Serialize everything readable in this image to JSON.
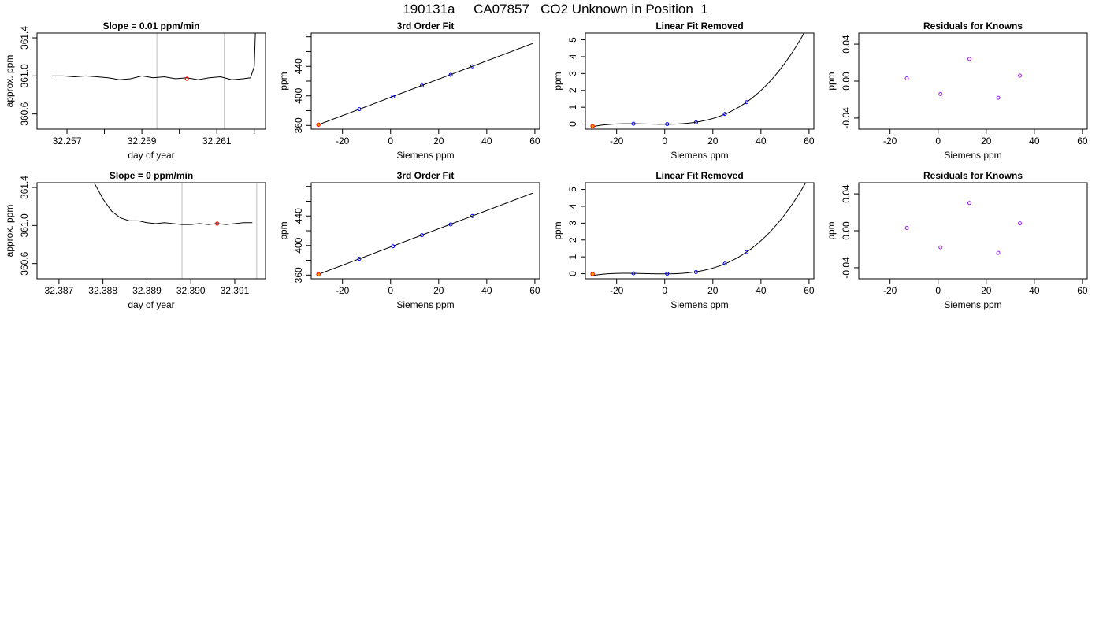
{
  "figure": {
    "title": "190131a     CA07857   CO2 Unknown in Position  1"
  },
  "colors": {
    "line": "#000000",
    "vline": "#bebebe",
    "known_point": "#0000ff",
    "residual_point": "#a020f0",
    "unknown_point": "#ff0000",
    "unknown_fill": "#ffa500"
  },
  "chart_data": [
    {
      "id": "r1-trace",
      "type": "line",
      "title": "Slope =  0.01  ppm/min",
      "xlabel": "day of year",
      "ylabel": "approx. ppm",
      "xlim": [
        32.2562,
        32.2623
      ],
      "ylim": [
        360.44,
        361.45
      ],
      "xticks": [
        32.257,
        32.258,
        32.259,
        32.26,
        32.261,
        32.262
      ],
      "xtick_labels": [
        "32.257",
        "",
        "32.259",
        "",
        "32.261",
        ""
      ],
      "yticks": [
        360.6,
        361.0,
        361.4
      ],
      "ytick_labels": [
        "360.6",
        "361.0",
        "361.4"
      ],
      "vlines": [
        32.2594,
        32.2612
      ],
      "series": [
        {
          "points": [
            [
              32.2566,
              361.0
            ],
            [
              32.2569,
              361.0
            ],
            [
              32.2572,
              360.99
            ],
            [
              32.2575,
              361.0
            ],
            [
              32.2578,
              360.99
            ],
            [
              32.2581,
              360.98
            ],
            [
              32.2584,
              360.96
            ],
            [
              32.2587,
              360.97
            ],
            [
              32.259,
              361.0
            ],
            [
              32.2593,
              360.98
            ],
            [
              32.2596,
              360.99
            ],
            [
              32.2599,
              360.97
            ],
            [
              32.2602,
              360.98
            ],
            [
              32.2605,
              360.96
            ],
            [
              32.2608,
              360.98
            ],
            [
              32.2611,
              360.99
            ],
            [
              32.2614,
              360.96
            ],
            [
              32.2617,
              360.97
            ],
            [
              32.2619,
              360.98
            ],
            [
              32.262,
              361.1
            ],
            [
              32.26203,
              361.45
            ]
          ]
        }
      ],
      "marker": {
        "x": 32.2602,
        "y": 360.97
      }
    },
    {
      "id": "r1-fit",
      "type": "scatter",
      "title": "3rd Order Fit",
      "xlabel": "Siemens ppm",
      "ylabel": "ppm",
      "xlim": [
        -33,
        62
      ],
      "ylim": [
        355,
        485
      ],
      "xticks": [
        -20,
        0,
        20,
        40,
        60
      ],
      "xtick_labels": [
        "-20",
        "0",
        "20",
        "40",
        "60"
      ],
      "yticks": [
        360,
        380,
        400,
        420,
        440,
        460,
        480
      ],
      "ytick_labels": [
        "360",
        "",
        "400",
        "",
        "440",
        "",
        ""
      ],
      "curve": "fit",
      "known_points": [
        [
          -13,
          382.0
        ],
        [
          1,
          399.0
        ],
        [
          13,
          414.0
        ],
        [
          25,
          428.5
        ],
        [
          34,
          440.0
        ]
      ],
      "unknown_point": [
        -30,
        361.0
      ]
    },
    {
      "id": "r1-linear-removed",
      "type": "scatter",
      "title": "Linear Fit Removed",
      "xlabel": "Siemens ppm",
      "ylabel": "ppm",
      "xlim": [
        -33,
        62
      ],
      "ylim": [
        -0.3,
        5.4
      ],
      "xticks": [
        -20,
        0,
        20,
        40,
        60
      ],
      "xtick_labels": [
        "-20",
        "0",
        "20",
        "40",
        "60"
      ],
      "yticks": [
        0,
        1,
        2,
        3,
        4,
        5
      ],
      "ytick_labels": [
        "0",
        "1",
        "2",
        "3",
        "4",
        "5"
      ],
      "curve": "cubic",
      "known_points": [
        [
          -13,
          0.02
        ],
        [
          1,
          0.0
        ],
        [
          13,
          0.1
        ],
        [
          25,
          0.6
        ],
        [
          34,
          1.3
        ]
      ],
      "unknown_point": [
        -30,
        -0.12
      ]
    },
    {
      "id": "r1-residuals",
      "type": "scatter",
      "title": "Residuals for Knowns",
      "xlabel": "Siemens ppm",
      "ylabel": "ppm",
      "xlim": [
        -33,
        62
      ],
      "ylim": [
        -0.052,
        0.052
      ],
      "xticks": [
        -20,
        0,
        20,
        40,
        60
      ],
      "xtick_labels": [
        "-20",
        "0",
        "20",
        "40",
        "60"
      ],
      "yticks": [
        -0.04,
        0.0,
        0.04
      ],
      "ytick_labels": [
        "-0.04",
        "0.00",
        "0.04"
      ],
      "residual_points": [
        [
          -13,
          0.003
        ],
        [
          1,
          -0.014
        ],
        [
          13,
          0.024
        ],
        [
          25,
          -0.018
        ],
        [
          34,
          0.006
        ]
      ]
    },
    {
      "id": "r2-trace",
      "type": "line",
      "title": "Slope =  0  ppm/min",
      "xlabel": "day of year",
      "ylabel": "approx. ppm",
      "xlim": [
        32.3865,
        32.3917
      ],
      "ylim": [
        360.44,
        361.45
      ],
      "xticks": [
        32.387,
        32.388,
        32.389,
        32.39,
        32.391
      ],
      "xtick_labels": [
        "32.387",
        "32.388",
        "32.389",
        "32.390",
        "32.391"
      ],
      "yticks": [
        360.6,
        361.0,
        361.4
      ],
      "ytick_labels": [
        "360.6",
        "361.0",
        "361.4"
      ],
      "vlines": [
        32.3898,
        32.3915
      ],
      "series": [
        {
          "points": [
            [
              32.3878,
              361.45
            ],
            [
              32.388,
              361.28
            ],
            [
              32.3882,
              361.15
            ],
            [
              32.3884,
              361.08
            ],
            [
              32.3886,
              361.05
            ],
            [
              32.3888,
              361.05
            ],
            [
              32.389,
              361.03
            ],
            [
              32.3892,
              361.02
            ],
            [
              32.3894,
              361.03
            ],
            [
              32.3896,
              361.02
            ],
            [
              32.3898,
              361.01
            ],
            [
              32.39,
              361.01
            ],
            [
              32.3902,
              361.02
            ],
            [
              32.3904,
              361.01
            ],
            [
              32.3906,
              361.02
            ],
            [
              32.3908,
              361.01
            ],
            [
              32.391,
              361.02
            ],
            [
              32.3912,
              361.03
            ],
            [
              32.3914,
              361.03
            ]
          ]
        }
      ],
      "marker": {
        "x": 32.3906,
        "y": 361.02
      }
    },
    {
      "id": "r2-fit",
      "type": "scatter",
      "title": "3rd Order Fit",
      "xlabel": "Siemens ppm",
      "ylabel": "ppm",
      "xlim": [
        -33,
        62
      ],
      "ylim": [
        355,
        485
      ],
      "xticks": [
        -20,
        0,
        20,
        40,
        60
      ],
      "xtick_labels": [
        "-20",
        "0",
        "20",
        "40",
        "60"
      ],
      "yticks": [
        360,
        380,
        400,
        420,
        440,
        460,
        480
      ],
      "ytick_labels": [
        "360",
        "",
        "400",
        "",
        "440",
        "",
        ""
      ],
      "curve": "fit",
      "known_points": [
        [
          -13,
          382.0
        ],
        [
          1,
          399.0
        ],
        [
          13,
          414.0
        ],
        [
          25,
          428.5
        ],
        [
          34,
          440.0
        ]
      ],
      "unknown_point": [
        -30,
        361.0
      ]
    },
    {
      "id": "r2-linear-removed",
      "type": "scatter",
      "title": "Linear Fit Removed",
      "xlabel": "Siemens ppm",
      "ylabel": "ppm",
      "xlim": [
        -33,
        62
      ],
      "ylim": [
        -0.3,
        5.4
      ],
      "xticks": [
        -20,
        0,
        20,
        40,
        60
      ],
      "xtick_labels": [
        "-20",
        "0",
        "20",
        "40",
        "60"
      ],
      "yticks": [
        0,
        1,
        2,
        3,
        4,
        5
      ],
      "ytick_labels": [
        "0",
        "1",
        "2",
        "3",
        "4",
        "5"
      ],
      "curve": "cubic",
      "known_points": [
        [
          -13,
          0.02
        ],
        [
          1,
          0.0
        ],
        [
          13,
          0.1
        ],
        [
          25,
          0.6
        ],
        [
          34,
          1.28
        ]
      ],
      "unknown_point": [
        -30,
        -0.02
      ]
    },
    {
      "id": "r2-residuals",
      "type": "scatter",
      "title": "Residuals for Knowns",
      "xlabel": "Siemens ppm",
      "ylabel": "ppm",
      "xlim": [
        -33,
        62
      ],
      "ylim": [
        -0.052,
        0.052
      ],
      "xticks": [
        -20,
        0,
        20,
        40,
        60
      ],
      "xtick_labels": [
        "-20",
        "0",
        "20",
        "40",
        "60"
      ],
      "yticks": [
        -0.04,
        0.0,
        0.04
      ],
      "ytick_labels": [
        "-0.04",
        "0.00",
        "0.04"
      ],
      "residual_points": [
        [
          -13,
          0.003
        ],
        [
          1,
          -0.018
        ],
        [
          13,
          0.03
        ],
        [
          25,
          -0.024
        ],
        [
          34,
          0.008
        ]
      ]
    }
  ]
}
